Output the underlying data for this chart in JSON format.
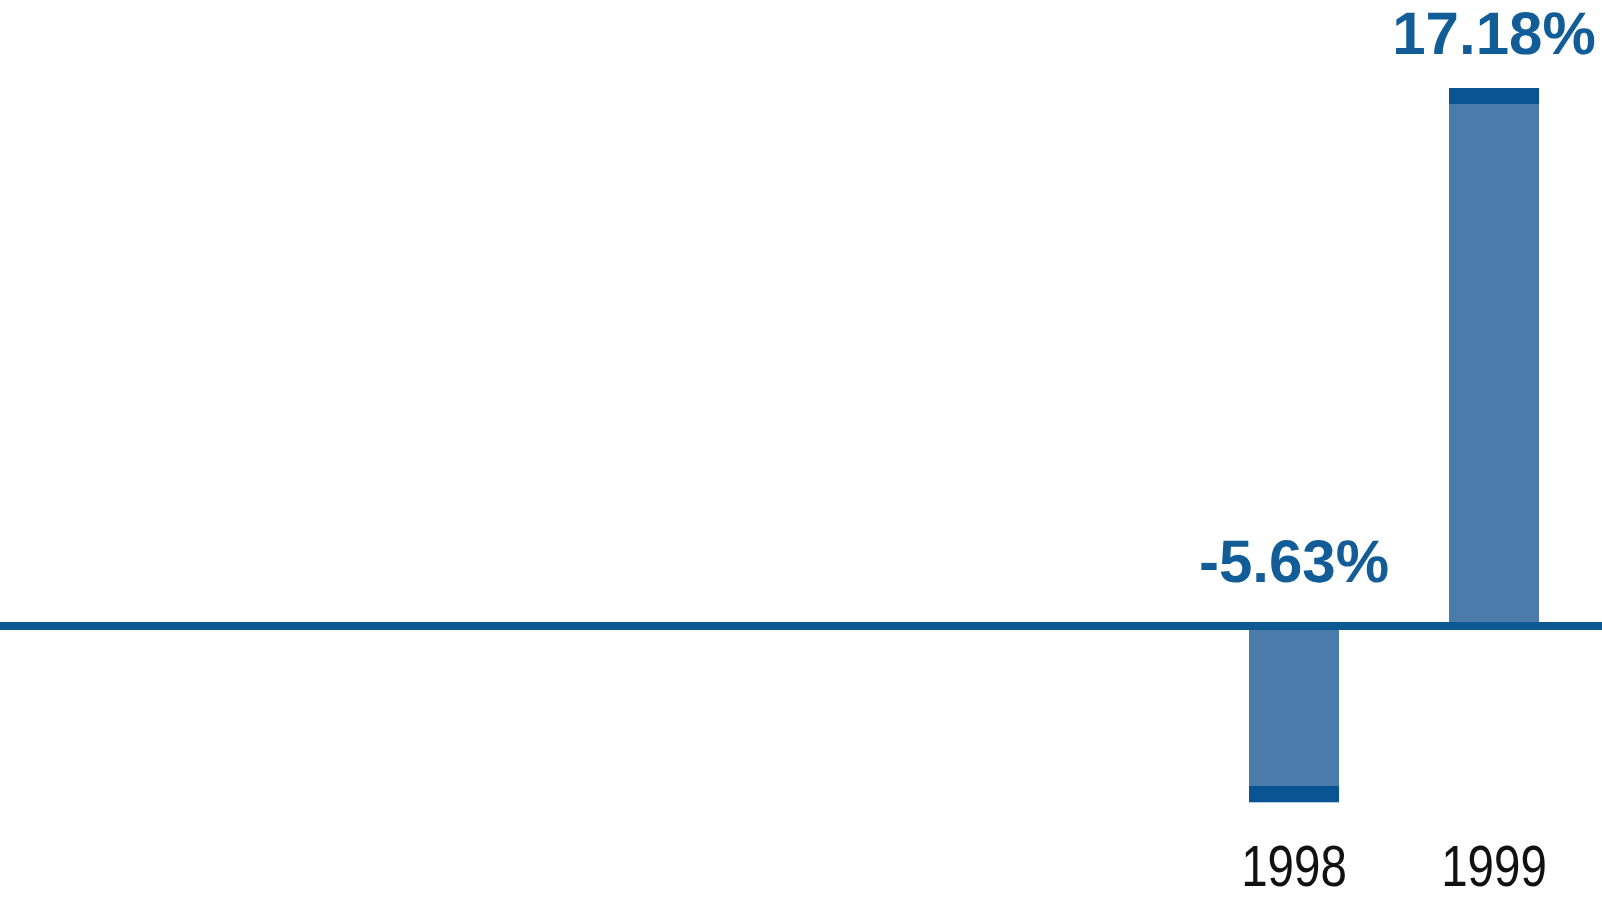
{
  "chart_data": {
    "type": "bar",
    "categories": [
      null,
      null,
      null,
      null,
      null,
      null,
      "1998",
      "1999"
    ],
    "values": [
      null,
      null,
      null,
      null,
      null,
      null,
      -5.63,
      17.18
    ],
    "value_labels": [
      null,
      null,
      null,
      null,
      null,
      null,
      "-5.63%",
      "17.18%"
    ],
    "color": "#4a7bab",
    "ref_lines": [
      {
        "axis": "y",
        "value": 0,
        "color": "#0c5a91"
      }
    ],
    "tick_labels": "x"
  }
}
